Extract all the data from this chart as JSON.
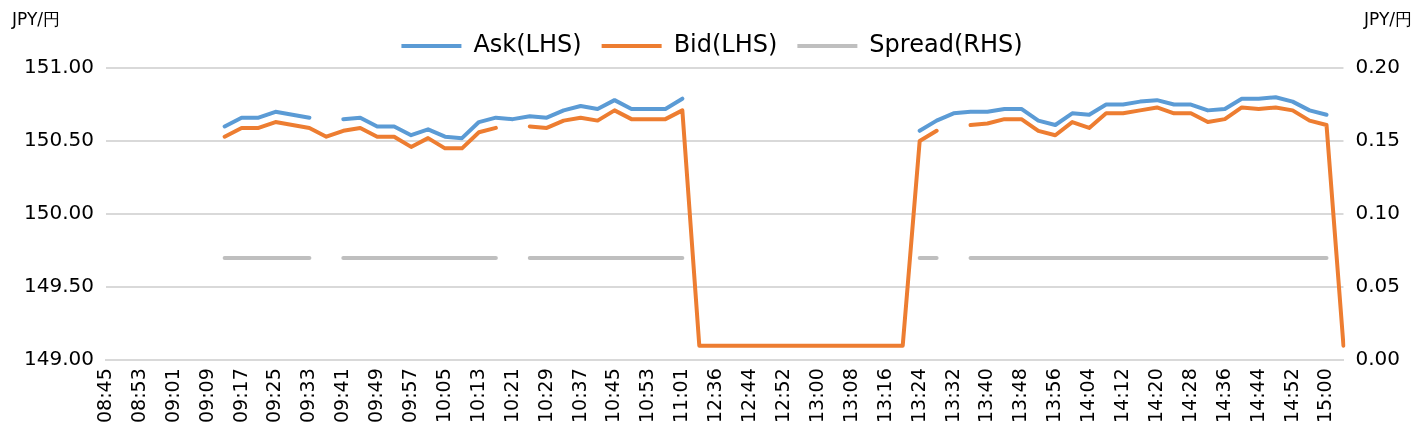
{
  "chart_data": {
    "type": "line",
    "ylabel": "JPY/円",
    "y2label": "JPY/円",
    "categories": [
      "08:45",
      null,
      "08:53",
      null,
      "09:01",
      null,
      "09:09",
      null,
      "09:17",
      null,
      "09:25",
      null,
      "09:33",
      null,
      "09:41",
      null,
      "09:49",
      null,
      "09:57",
      null,
      "10:05",
      null,
      "10:13",
      null,
      "10:21",
      null,
      "10:29",
      null,
      "10:37",
      null,
      "10:45",
      null,
      "10:53",
      null,
      "11:01",
      null,
      "12:36",
      null,
      "12:44",
      null,
      "12:52",
      null,
      "13:00",
      null,
      "13:08",
      null,
      "13:16",
      null,
      "13:24",
      null,
      "13:32",
      null,
      "13:40",
      null,
      "13:48",
      null,
      "13:56",
      null,
      "14:04",
      null,
      "14:12",
      null,
      "14:20",
      null,
      "14:28",
      null,
      "14:36",
      null,
      "14:44",
      null,
      "14:52",
      null,
      "15:00",
      null
    ],
    "series": [
      {
        "name": "Ask(LHS)",
        "color": "#5b9bd5",
        "axis": "y",
        "values": [
          null,
          null,
          null,
          null,
          null,
          null,
          null,
          150.6,
          150.66,
          150.66,
          150.7,
          150.68,
          150.66,
          null,
          150.65,
          150.66,
          150.6,
          150.6,
          150.54,
          150.58,
          150.53,
          150.52,
          150.63,
          150.66,
          150.65,
          150.67,
          150.66,
          150.71,
          150.74,
          150.72,
          150.78,
          150.72,
          150.72,
          150.72,
          150.79,
          null,
          null,
          null,
          null,
          null,
          null,
          null,
          null,
          null,
          null,
          null,
          null,
          null,
          150.57,
          150.64,
          150.69,
          150.7,
          150.7,
          150.72,
          150.72,
          150.64,
          150.61,
          150.69,
          150.68,
          150.75,
          150.75,
          150.77,
          150.78,
          150.75,
          150.75,
          150.71,
          150.72,
          150.79,
          150.79,
          150.8,
          150.77,
          150.71,
          150.68,
          null
        ]
      },
      {
        "name": "Bid(LHS)",
        "color": "#ed7d31",
        "axis": "y",
        "values": [
          null,
          null,
          null,
          null,
          null,
          null,
          null,
          150.53,
          150.59,
          150.59,
          150.63,
          150.61,
          150.59,
          150.53,
          150.57,
          150.59,
          150.53,
          150.53,
          150.46,
          150.52,
          150.45,
          150.45,
          150.56,
          150.59,
          null,
          150.6,
          150.59,
          150.64,
          150.66,
          150.64,
          150.71,
          150.65,
          150.65,
          150.65,
          150.71,
          149.1,
          149.1,
          149.1,
          149.1,
          149.1,
          149.1,
          149.1,
          149.1,
          149.1,
          149.1,
          149.1,
          149.1,
          149.1,
          150.5,
          150.57,
          null,
          150.61,
          150.62,
          150.65,
          150.65,
          150.57,
          150.54,
          150.63,
          150.59,
          150.69,
          150.69,
          150.71,
          150.73,
          150.69,
          150.69,
          150.63,
          150.65,
          150.73,
          150.72,
          150.73,
          150.71,
          150.64,
          150.61,
          149.1
        ]
      },
      {
        "name": "Spread(RHS)",
        "color": "#bfbfbf",
        "axis": "y2",
        "values": [
          null,
          null,
          null,
          null,
          null,
          null,
          null,
          0.07,
          0.07,
          0.07,
          0.07,
          0.07,
          0.07,
          null,
          0.07,
          0.07,
          0.07,
          0.07,
          0.07,
          0.07,
          0.07,
          0.07,
          0.07,
          0.07,
          null,
          0.07,
          0.07,
          0.07,
          0.07,
          0.07,
          0.07,
          0.07,
          0.07,
          0.07,
          0.07,
          null,
          null,
          null,
          null,
          null,
          null,
          null,
          null,
          null,
          null,
          null,
          null,
          null,
          0.07,
          0.07,
          null,
          0.07,
          0.07,
          0.07,
          0.07,
          0.07,
          0.07,
          0.07,
          0.07,
          0.07,
          0.07,
          0.07,
          0.07,
          0.07,
          0.07,
          0.07,
          0.07,
          0.07,
          0.07,
          0.07,
          0.07,
          0.07,
          0.07,
          null
        ]
      }
    ],
    "ylim": [
      149,
      151
    ],
    "yticks": [
      {
        "value": 149,
        "label": "149.00"
      },
      {
        "value": 149.5,
        "label": "149.50"
      },
      {
        "value": 150,
        "label": "150.00"
      },
      {
        "value": 150.5,
        "label": "150.50"
      },
      {
        "value": 151,
        "label": "151.00"
      }
    ],
    "y2lim": [
      0,
      0.2
    ],
    "y2ticks": [
      {
        "value": 0,
        "label": "0.00"
      },
      {
        "value": 0.05,
        "label": "0.05"
      },
      {
        "value": 0.1,
        "label": "0.10"
      },
      {
        "value": 0.15,
        "label": "0.15"
      },
      {
        "value": 0.2,
        "label": "0.20"
      }
    ],
    "grid": "y",
    "legend": "top",
    "marker": "none",
    "line_style": "solid"
  }
}
